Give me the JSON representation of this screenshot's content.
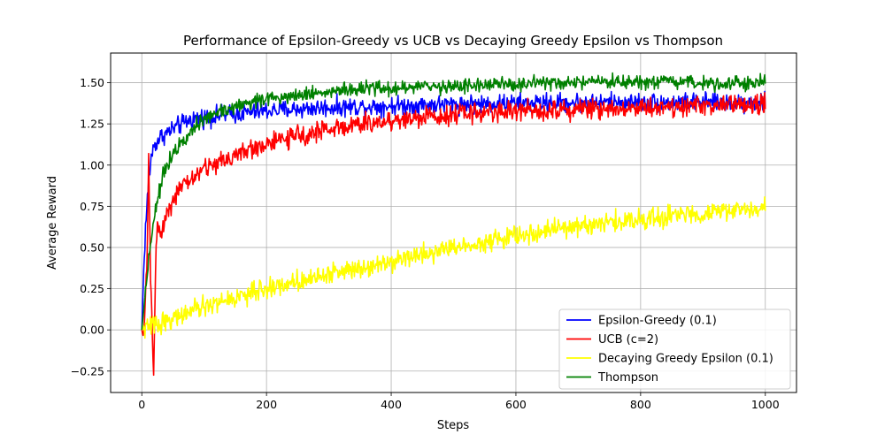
{
  "chart_data": {
    "type": "line",
    "title": "Performance of Epsilon-Greedy vs UCB vs Decaying Greedy Epsilon vs Thompson",
    "xlabel": "Steps",
    "ylabel": "Average Reward",
    "xlim": [
      -50,
      1050
    ],
    "ylim": [
      -0.38,
      1.68
    ],
    "xticks": [
      0,
      200,
      400,
      600,
      800,
      1000
    ],
    "yticks": [
      -0.25,
      0.0,
      0.25,
      0.5,
      0.75,
      1.0,
      1.25,
      1.5
    ],
    "xtick_labels": [
      "0",
      "200",
      "400",
      "600",
      "800",
      "1000"
    ],
    "ytick_labels": [
      "−0.25",
      "0.00",
      "0.25",
      "0.50",
      "0.75",
      "1.00",
      "1.25",
      "1.50"
    ],
    "grid": true,
    "legend_position": "lower-right",
    "steps": 1000,
    "series": [
      {
        "name": "Epsilon-Greedy (0.1)",
        "color": "#0000ff",
        "noise": 0.028,
        "values": [
          [
            0,
            0.0
          ],
          [
            3,
            0.35
          ],
          [
            6,
            0.62
          ],
          [
            10,
            0.85
          ],
          [
            15,
            1.05
          ],
          [
            20,
            1.12
          ],
          [
            30,
            1.17
          ],
          [
            50,
            1.22
          ],
          [
            80,
            1.28
          ],
          [
            120,
            1.3
          ],
          [
            200,
            1.33
          ],
          [
            300,
            1.35
          ],
          [
            500,
            1.37
          ],
          [
            700,
            1.38
          ],
          [
            1000,
            1.38
          ]
        ]
      },
      {
        "name": "UCB (c=2)",
        "color": "#ff0000",
        "noise": 0.03,
        "values": [
          [
            0,
            0.0
          ],
          [
            3,
            -0.05
          ],
          [
            8,
            0.35
          ],
          [
            11,
            1.08
          ],
          [
            14,
            0.3
          ],
          [
            19,
            -0.28
          ],
          [
            23,
            0.55
          ],
          [
            28,
            0.68
          ],
          [
            30,
            0.55
          ],
          [
            40,
            0.72
          ],
          [
            60,
            0.85
          ],
          [
            100,
            0.98
          ],
          [
            150,
            1.06
          ],
          [
            200,
            1.13
          ],
          [
            300,
            1.22
          ],
          [
            400,
            1.27
          ],
          [
            500,
            1.31
          ],
          [
            600,
            1.33
          ],
          [
            800,
            1.35
          ],
          [
            1000,
            1.37
          ]
        ]
      },
      {
        "name": "Decaying Greedy Epsilon (0.1)",
        "color": "#ffff00",
        "noise": 0.03,
        "values": [
          [
            0,
            0.0
          ],
          [
            5,
            0.01
          ],
          [
            50,
            0.07
          ],
          [
            100,
            0.14
          ],
          [
            200,
            0.25
          ],
          [
            300,
            0.34
          ],
          [
            400,
            0.42
          ],
          [
            500,
            0.5
          ],
          [
            600,
            0.57
          ],
          [
            700,
            0.63
          ],
          [
            800,
            0.67
          ],
          [
            900,
            0.71
          ],
          [
            1000,
            0.74
          ]
        ]
      },
      {
        "name": "Thompson",
        "color": "#008000",
        "noise": 0.022,
        "values": [
          [
            0,
            0.0
          ],
          [
            5,
            0.2
          ],
          [
            10,
            0.4
          ],
          [
            20,
            0.7
          ],
          [
            35,
            0.95
          ],
          [
            50,
            1.08
          ],
          [
            80,
            1.22
          ],
          [
            120,
            1.32
          ],
          [
            180,
            1.39
          ],
          [
            250,
            1.43
          ],
          [
            350,
            1.46
          ],
          [
            500,
            1.48
          ],
          [
            700,
            1.5
          ],
          [
            1000,
            1.5
          ]
        ]
      }
    ]
  }
}
